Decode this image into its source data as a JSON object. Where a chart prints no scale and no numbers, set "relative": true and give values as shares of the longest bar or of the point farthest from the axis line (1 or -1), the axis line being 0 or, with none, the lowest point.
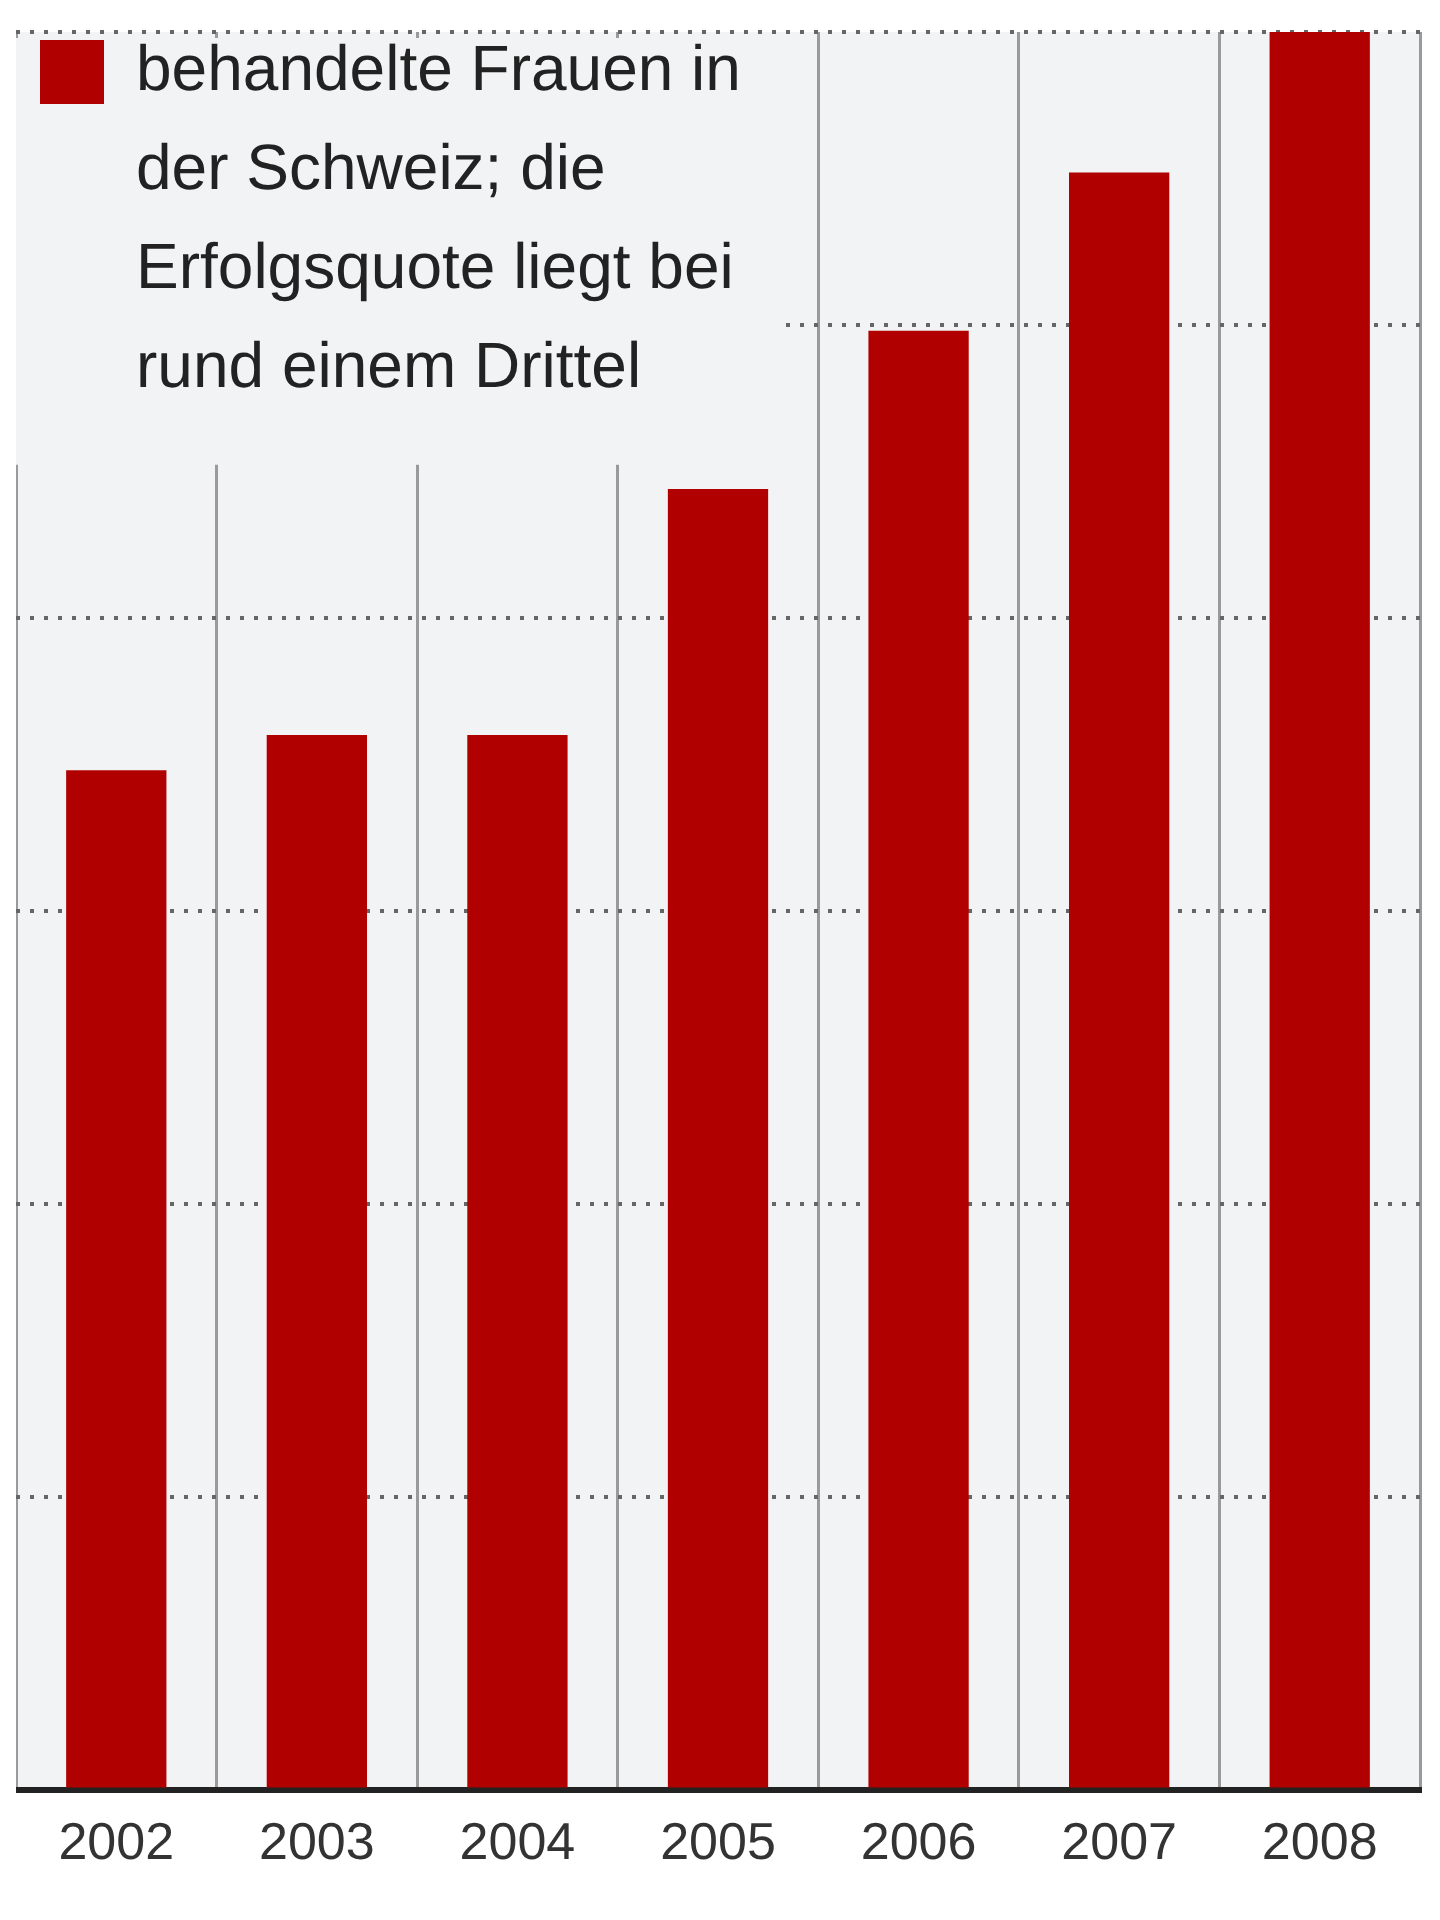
{
  "chart_data": {
    "type": "bar",
    "categories": [
      "2002",
      "2003",
      "2004",
      "2005",
      "2006",
      "2007",
      "2008"
    ],
    "series": [
      {
        "name": "behandelte Frauen in der Schweiz; die Erfolgsquote liegt bei rund einem Drittel",
        "color": "#b00000",
        "values": [
          0.58,
          0.6,
          0.6,
          0.74,
          0.83,
          0.92,
          1
        ]
      }
    ],
    "relative": true,
    "grid": true,
    "legend": "top left"
  }
}
